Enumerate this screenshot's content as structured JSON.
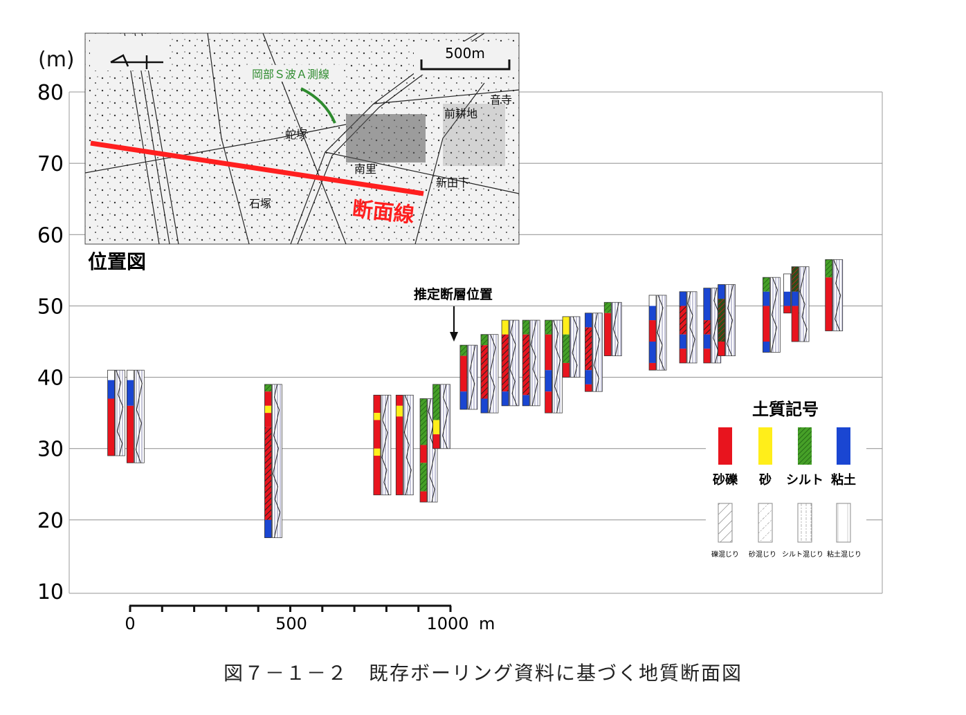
{
  "figure": {
    "caption": "図７－１－２　既存ボーリング資料に基づく地質断面図"
  },
  "section": {
    "y_unit": "(m)",
    "y_ticks": [
      80,
      70,
      60,
      50,
      40,
      30,
      20,
      10
    ],
    "y_range": [
      10,
      80
    ],
    "x_tick_labels": [
      "0",
      "500",
      "1000"
    ],
    "x_unit": "m",
    "x_range": [
      0,
      1000
    ],
    "fault_label": "推定断層位置",
    "fault_x": 1000
  },
  "map": {
    "title": "位置図",
    "scale_label": "500m",
    "section_line_label": "断面線",
    "survey_line_label": "岡部Ｓ波Ａ測線",
    "place_labels": [
      "蛇塚",
      "南里",
      "新田下",
      "前耕地",
      "音寺",
      "石塚"
    ],
    "colors": {
      "section_line": "#ff1f1f",
      "survey_line": "#2e8b2e"
    }
  },
  "legend": {
    "title": "土質記号",
    "solid": [
      {
        "label": "砂礫",
        "color": "#e8141e"
      },
      {
        "label": "砂",
        "color": "#ffee1a"
      },
      {
        "label": "シルト",
        "color": "#46a028"
      },
      {
        "label": "粘土",
        "color": "#1a46d2"
      }
    ],
    "hatched": [
      {
        "label": "礫混じり"
      },
      {
        "label": "砂混じり"
      },
      {
        "label": "シルト混じり"
      },
      {
        "label": "粘土混じり"
      }
    ]
  },
  "boreholes": [
    {
      "x": -70,
      "top": 41,
      "layers": [
        [
          41,
          39.6,
          "top"
        ],
        [
          39.6,
          37,
          "clay"
        ],
        [
          37,
          29,
          "gravel"
        ]
      ]
    },
    {
      "x": -10,
      "top": 41,
      "layers": [
        [
          41,
          39.6,
          "top"
        ],
        [
          39.6,
          36,
          "clay"
        ],
        [
          36,
          28,
          "gravel"
        ]
      ]
    },
    {
      "x": 420,
      "top": 39,
      "layers": [
        [
          39,
          38,
          "silt"
        ],
        [
          38,
          36,
          "gravel"
        ],
        [
          36,
          35,
          "sand"
        ],
        [
          35,
          33,
          "gravel"
        ],
        [
          33,
          20,
          "gravel_hatch"
        ],
        [
          20,
          17.5,
          "clay"
        ]
      ]
    },
    {
      "x": 760,
      "top": 37.5,
      "layers": [
        [
          37.5,
          35,
          "gravel"
        ],
        [
          35,
          34,
          "sand"
        ],
        [
          34,
          30,
          "gravel"
        ],
        [
          30,
          29,
          "sand"
        ],
        [
          29,
          23.5,
          "gravel"
        ]
      ]
    },
    {
      "x": 830,
      "top": 37.5,
      "layers": [
        [
          37.5,
          36,
          "gravel"
        ],
        [
          36,
          34.5,
          "sand"
        ],
        [
          34.5,
          23.5,
          "gravel"
        ]
      ]
    },
    {
      "x": 905,
      "top": 37,
      "layers": [
        [
          37,
          30.5,
          "silt"
        ],
        [
          30.5,
          28,
          "gravel"
        ],
        [
          28,
          24,
          "silt"
        ],
        [
          24,
          22.5,
          "gravel"
        ]
      ]
    },
    {
      "x": 945,
      "top": 39,
      "layers": [
        [
          39,
          34,
          "silt"
        ],
        [
          34,
          32,
          "sand"
        ],
        [
          32,
          30,
          "gravel"
        ]
      ]
    },
    {
      "x": 1030,
      "top": 44.5,
      "layers": [
        [
          44.5,
          43,
          "silt"
        ],
        [
          43,
          38,
          "gravel"
        ],
        [
          38,
          35.5,
          "clay"
        ]
      ]
    },
    {
      "x": 1095,
      "top": 46,
      "layers": [
        [
          46,
          44.5,
          "silt"
        ],
        [
          44.5,
          37,
          "gravel_hatch"
        ],
        [
          37,
          35,
          "clay"
        ]
      ]
    },
    {
      "x": 1160,
      "top": 48,
      "layers": [
        [
          48,
          46,
          "sand"
        ],
        [
          46,
          38,
          "gravel_hatch"
        ],
        [
          38,
          36,
          "clay"
        ]
      ]
    },
    {
      "x": 1225,
      "top": 48,
      "layers": [
        [
          48,
          46,
          "silt"
        ],
        [
          46,
          37.5,
          "gravel_hatch"
        ],
        [
          37.5,
          36,
          "clay"
        ]
      ]
    },
    {
      "x": 1295,
      "top": 48,
      "layers": [
        [
          48,
          46,
          "silt"
        ],
        [
          46,
          41,
          "gravel"
        ],
        [
          41,
          38,
          "clay"
        ],
        [
          38,
          35,
          "gravel"
        ]
      ]
    },
    {
      "x": 1350,
      "top": 48.5,
      "layers": [
        [
          48.5,
          46,
          "sand"
        ],
        [
          46,
          42,
          "silt"
        ],
        [
          42,
          40,
          "gravel"
        ]
      ]
    },
    {
      "x": 1420,
      "top": 49,
      "layers": [
        [
          49,
          47,
          "clay"
        ],
        [
          47,
          41,
          "gravel_hatch"
        ],
        [
          41,
          39,
          "clay"
        ],
        [
          39,
          38,
          "gravel"
        ]
      ]
    },
    {
      "x": 1480,
      "top": 50.5,
      "layers": [
        [
          50.5,
          49,
          "silt"
        ],
        [
          49,
          43,
          "gravel"
        ]
      ]
    },
    {
      "x": 1620,
      "top": 51.5,
      "layers": [
        [
          51.5,
          50,
          "top"
        ],
        [
          50,
          48,
          "clay"
        ],
        [
          48,
          45,
          "gravel"
        ],
        [
          45,
          42,
          "clay"
        ],
        [
          42,
          41,
          "gravel"
        ]
      ]
    },
    {
      "x": 1715,
      "top": 52,
      "layers": [
        [
          52,
          50,
          "clay"
        ],
        [
          50,
          46,
          "gravel_hatch"
        ],
        [
          46,
          44,
          "clay"
        ],
        [
          44,
          42,
          "gravel"
        ]
      ]
    },
    {
      "x": 1790,
      "top": 52.5,
      "layers": [
        [
          52.5,
          48,
          "clay"
        ],
        [
          48,
          46,
          "gravel_hatch"
        ],
        [
          46,
          44,
          "clay"
        ],
        [
          44,
          42,
          "gravel"
        ]
      ]
    },
    {
      "x": 1835,
      "top": 53,
      "layers": [
        [
          53,
          51,
          "clay"
        ],
        [
          51,
          45,
          "silt_dark"
        ],
        [
          45,
          43,
          "gravel"
        ]
      ]
    },
    {
      "x": 1975,
      "top": 54,
      "layers": [
        [
          54,
          52,
          "silt"
        ],
        [
          52,
          50,
          "clay"
        ],
        [
          50,
          45,
          "gravel"
        ],
        [
          45,
          43.5,
          "clay"
        ]
      ]
    },
    {
      "x": 2040,
      "top": 54.5,
      "layers": [
        [
          54.5,
          52,
          "top"
        ],
        [
          52,
          50,
          "clay"
        ],
        [
          50,
          49,
          "gravel"
        ]
      ]
    },
    {
      "x": 2065,
      "top": 55.5,
      "layers": [
        [
          55.5,
          52,
          "silt_dark"
        ],
        [
          52,
          50,
          "clay"
        ],
        [
          50,
          45,
          "gravel"
        ]
      ]
    },
    {
      "x": 2170,
      "top": 56.5,
      "layers": [
        [
          56.5,
          54,
          "silt"
        ],
        [
          54,
          46.5,
          "gravel"
        ]
      ]
    }
  ]
}
